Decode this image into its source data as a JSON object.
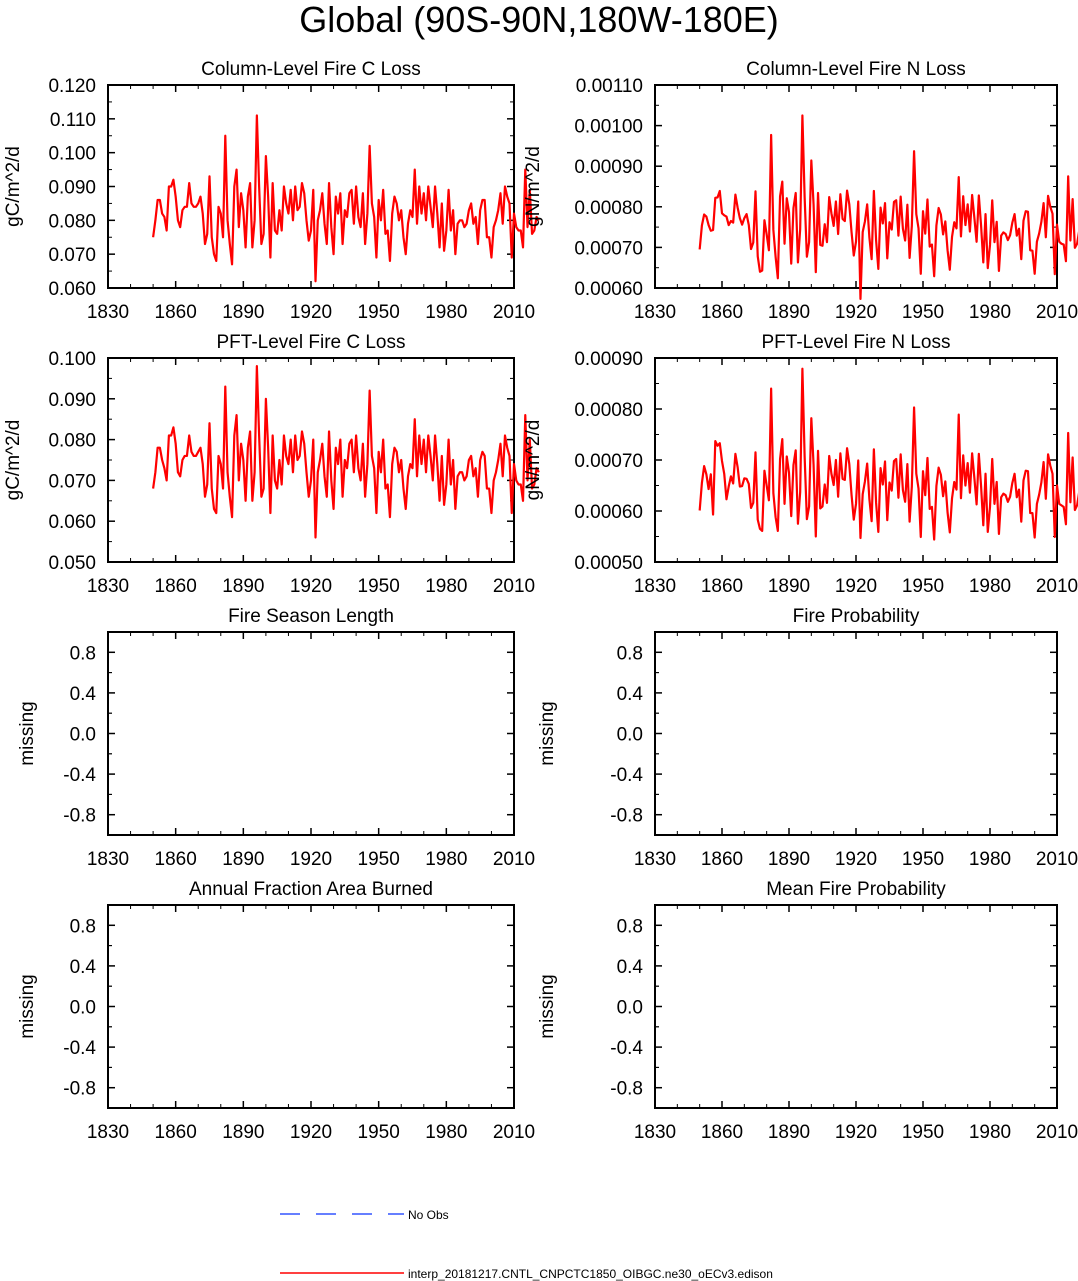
{
  "page": {
    "title": "Global (90S-90N,180W-180E)"
  },
  "colors": {
    "model_line": "#ff0000",
    "obs_line": "#3355ff",
    "axis": "#000000"
  },
  "legend": {
    "entries": [
      {
        "label": "No Obs",
        "style": "dashed",
        "color": "#3355ff"
      },
      {
        "label": "interp_20181217.CNTL_CNPCTC1850_OIBGC.ne30_oECv3.edison",
        "style": "solid",
        "color": "#ff0000"
      }
    ]
  },
  "chart_data": [
    {
      "type": "line",
      "title": "Column-Level Fire C Loss",
      "ylabel": "gC/m^2/d",
      "xlim": [
        1830,
        2010
      ],
      "ylim": [
        0.06,
        0.12
      ],
      "xticks": [
        1830,
        1860,
        1890,
        1920,
        1950,
        1980,
        2010
      ],
      "yticks": [
        0.06,
        0.07,
        0.08,
        0.09,
        0.1,
        0.11,
        0.12
      ],
      "ytick_labels": [
        "0.060",
        "0.070",
        "0.080",
        "0.090",
        "0.100",
        "0.110",
        "0.120"
      ],
      "x_start": 1850,
      "series": [
        {
          "color": "#ff0000",
          "values": [
            0.075,
            0.08,
            0.086,
            0.086,
            0.082,
            0.081,
            0.077,
            0.09,
            0.09,
            0.092,
            0.087,
            0.08,
            0.078,
            0.083,
            0.084,
            0.084,
            0.091,
            0.085,
            0.084,
            0.084,
            0.085,
            0.087,
            0.082,
            0.073,
            0.076,
            0.093,
            0.075,
            0.07,
            0.068,
            0.084,
            0.082,
            0.075,
            0.105,
            0.08,
            0.073,
            0.067,
            0.09,
            0.095,
            0.078,
            0.088,
            0.083,
            0.072,
            0.087,
            0.091,
            0.072,
            0.08,
            0.111,
            0.09,
            0.073,
            0.076,
            0.099,
            0.087,
            0.069,
            0.091,
            0.077,
            0.076,
            0.083,
            0.077,
            0.09,
            0.085,
            0.082,
            0.089,
            0.08,
            0.09,
            0.083,
            0.084,
            0.091,
            0.088,
            0.08,
            0.074,
            0.077,
            0.089,
            0.062,
            0.08,
            0.083,
            0.088,
            0.079,
            0.073,
            0.091,
            0.078,
            0.07,
            0.087,
            0.082,
            0.088,
            0.073,
            0.083,
            0.081,
            0.088,
            0.089,
            0.079,
            0.09,
            0.081,
            0.078,
            0.088,
            0.073,
            0.082,
            0.102,
            0.085,
            0.081,
            0.069,
            0.086,
            0.08,
            0.089,
            0.076,
            0.077,
            0.068,
            0.082,
            0.087,
            0.085,
            0.08,
            0.083,
            0.075,
            0.07,
            0.079,
            0.083,
            0.081,
            0.095,
            0.079,
            0.09,
            0.082,
            0.088,
            0.08,
            0.09,
            0.084,
            0.078,
            0.09,
            0.082,
            0.072,
            0.085,
            0.071,
            0.077,
            0.089,
            0.077,
            0.083,
            0.07,
            0.079,
            0.08,
            0.08,
            0.078,
            0.079,
            0.083,
            0.085,
            0.079,
            0.081,
            0.073,
            0.083,
            0.086,
            0.086,
            0.075,
            0.075,
            0.069,
            0.078,
            0.08,
            0.083,
            0.088,
            0.079,
            0.09,
            0.087,
            0.085,
            0.069,
            0.082,
            0.078,
            0.077,
            0.077,
            0.072,
            0.095,
            0.078,
            0.089,
            0.076,
            0.077,
            0.081,
            0.08
          ]
        }
      ]
    },
    {
      "type": "line",
      "title": "Column-Level Fire N Loss",
      "ylabel": "gN/m^2/d",
      "xlim": [
        1830,
        2010
      ],
      "ylim": [
        0.0006,
        0.0011
      ],
      "xticks": [
        1830,
        1860,
        1890,
        1920,
        1950,
        1980,
        2010
      ],
      "yticks": [
        0.0006,
        0.0007,
        0.0008,
        0.0009,
        0.001,
        0.0011
      ],
      "ytick_labels": [
        "0.00060",
        "0.00070",
        "0.00080",
        "0.00090",
        "0.00100",
        "0.00110"
      ],
      "x_start": 1850,
      "series": [
        {
          "color": "#ff0000",
          "values": [
            0.000695,
            0.000754,
            0.000781,
            0.000776,
            0.000755,
            0.000741,
            0.000743,
            0.000822,
            0.000823,
            0.000839,
            0.000784,
            0.000779,
            0.000776,
            0.000755,
            0.000765,
            0.000761,
            0.00083,
            0.000798,
            0.000772,
            0.000756,
            0.000772,
            0.000782,
            0.000755,
            0.000696,
            0.000712,
            0.000838,
            0.000678,
            0.00064,
            0.000643,
            0.000767,
            0.000732,
            0.000693,
            0.000977,
            0.000743,
            0.000677,
            0.000624,
            0.000826,
            0.000862,
            0.000709,
            0.000821,
            0.000787,
            0.00066,
            0.000797,
            0.000834,
            0.000663,
            0.000745,
            0.001025,
            0.000824,
            0.000677,
            0.000713,
            0.000914,
            0.000806,
            0.000639,
            0.000834,
            0.000706,
            0.000704,
            0.000757,
            0.000713,
            0.000824,
            0.000784,
            0.000753,
            0.000813,
            0.000733,
            0.000831,
            0.00077,
            0.000765,
            0.00084,
            0.000806,
            0.000738,
            0.00068,
            0.000714,
            0.000813,
            0.000573,
            0.000738,
            0.000764,
            0.000806,
            0.000724,
            0.000671,
            0.000839,
            0.000717,
            0.000647,
            0.000798,
            0.000759,
            0.000809,
            0.000673,
            0.000762,
            0.000744,
            0.000812,
            0.000816,
            0.000729,
            0.000825,
            0.000746,
            0.000717,
            0.000805,
            0.000674,
            0.000753,
            0.000937,
            0.000782,
            0.000747,
            0.000635,
            0.000789,
            0.000734,
            0.000818,
            0.000702,
            0.000707,
            0.000629,
            0.000754,
            0.000797,
            0.000781,
            0.000732,
            0.000764,
            0.000693,
            0.000645,
            0.000726,
            0.000762,
            0.000747,
            0.000873,
            0.000727,
            0.000826,
            0.000755,
            0.000806,
            0.000739,
            0.000829,
            0.000773,
            0.000714,
            0.000828,
            0.000754,
            0.000663,
            0.000782,
            0.000649,
            0.000706,
            0.000816,
            0.000713,
            0.000763,
            0.000642,
            0.000729,
            0.000737,
            0.000733,
            0.000718,
            0.00073,
            0.000761,
            0.000782,
            0.000729,
            0.000746,
            0.000671,
            0.000766,
            0.000789,
            0.000788,
            0.000693,
            0.000692,
            0.000635,
            0.000714,
            0.000734,
            0.000763,
            0.000809,
            0.000725,
            0.000827,
            0.0008,
            0.000783,
            0.000634,
            0.000756,
            0.000714,
            0.000709,
            0.000707,
            0.000666,
            0.000875,
            0.000717,
            0.000819,
            0.000699,
            0.000709,
            0.000743,
            0.000736
          ]
        }
      ]
    },
    {
      "type": "line",
      "title": "PFT-Level Fire C Loss",
      "ylabel": "gC/m^2/d",
      "xlim": [
        1830,
        2010
      ],
      "ylim": [
        0.05,
        0.1
      ],
      "xticks": [
        1830,
        1860,
        1890,
        1920,
        1950,
        1980,
        2010
      ],
      "yticks": [
        0.05,
        0.06,
        0.07,
        0.08,
        0.09,
        0.1
      ],
      "ytick_labels": [
        "0.050",
        "0.060",
        "0.070",
        "0.080",
        "0.090",
        "0.100"
      ],
      "x_start": 1850,
      "series": [
        {
          "color": "#ff0000",
          "values": [
            0.068,
            0.072,
            0.078,
            0.078,
            0.075,
            0.073,
            0.07,
            0.081,
            0.081,
            0.083,
            0.079,
            0.072,
            0.071,
            0.075,
            0.076,
            0.076,
            0.081,
            0.077,
            0.076,
            0.076,
            0.077,
            0.078,
            0.074,
            0.066,
            0.069,
            0.084,
            0.068,
            0.063,
            0.062,
            0.076,
            0.074,
            0.068,
            0.093,
            0.072,
            0.066,
            0.061,
            0.081,
            0.086,
            0.07,
            0.079,
            0.075,
            0.065,
            0.078,
            0.082,
            0.065,
            0.072,
            0.098,
            0.081,
            0.066,
            0.068,
            0.09,
            0.078,
            0.062,
            0.081,
            0.07,
            0.068,
            0.075,
            0.069,
            0.081,
            0.076,
            0.074,
            0.08,
            0.072,
            0.081,
            0.075,
            0.076,
            0.082,
            0.079,
            0.072,
            0.066,
            0.07,
            0.08,
            0.056,
            0.072,
            0.075,
            0.079,
            0.071,
            0.066,
            0.082,
            0.07,
            0.063,
            0.078,
            0.074,
            0.08,
            0.066,
            0.075,
            0.073,
            0.079,
            0.08,
            0.072,
            0.081,
            0.073,
            0.07,
            0.079,
            0.066,
            0.074,
            0.092,
            0.076,
            0.073,
            0.062,
            0.077,
            0.072,
            0.08,
            0.068,
            0.069,
            0.061,
            0.074,
            0.078,
            0.077,
            0.072,
            0.075,
            0.068,
            0.063,
            0.071,
            0.074,
            0.073,
            0.085,
            0.071,
            0.081,
            0.074,
            0.08,
            0.072,
            0.081,
            0.076,
            0.07,
            0.081,
            0.074,
            0.065,
            0.076,
            0.064,
            0.069,
            0.08,
            0.069,
            0.075,
            0.063,
            0.071,
            0.072,
            0.072,
            0.07,
            0.071,
            0.075,
            0.076,
            0.071,
            0.073,
            0.066,
            0.075,
            0.077,
            0.076,
            0.068,
            0.068,
            0.062,
            0.07,
            0.072,
            0.075,
            0.079,
            0.071,
            0.081,
            0.078,
            0.076,
            0.062,
            0.074,
            0.07,
            0.069,
            0.069,
            0.065,
            0.086,
            0.07,
            0.08,
            0.068,
            0.069,
            0.073,
            0.072
          ]
        }
      ]
    },
    {
      "type": "line",
      "title": "PFT-Level Fire N Loss",
      "ylabel": "gN/m^2/d",
      "xlim": [
        1830,
        2010
      ],
      "ylim": [
        0.0005,
        0.0009
      ],
      "xticks": [
        1830,
        1860,
        1890,
        1920,
        1950,
        1980,
        2010
      ],
      "yticks": [
        0.0005,
        0.0006,
        0.0007,
        0.0008,
        0.0009
      ],
      "ytick_labels": [
        "0.00050",
        "0.00060",
        "0.00070",
        "0.00080",
        "0.00090"
      ],
      "x_start": 1850,
      "series": [
        {
          "color": "#ff0000",
          "values": [
            0.000601,
            0.000655,
            0.000688,
            0.000672,
            0.000643,
            0.000672,
            0.000593,
            0.000737,
            0.000728,
            0.000733,
            0.000698,
            0.000673,
            0.000623,
            0.000648,
            0.000668,
            0.000654,
            0.000712,
            0.000686,
            0.000648,
            0.000649,
            0.000664,
            0.000663,
            0.000653,
            0.000606,
            0.000616,
            0.000715,
            0.000583,
            0.000565,
            0.000561,
            0.000679,
            0.00065,
            0.000621,
            0.00084,
            0.000635,
            0.000588,
            0.000561,
            0.000702,
            0.000741,
            0.000614,
            0.000707,
            0.000675,
            0.00059,
            0.00069,
            0.000719,
            0.000575,
            0.000637,
            0.000879,
            0.000707,
            0.000584,
            0.000609,
            0.000782,
            0.000691,
            0.00055,
            0.000718,
            0.000605,
            0.000609,
            0.000652,
            0.000616,
            0.000708,
            0.000673,
            0.000651,
            0.0007,
            0.000628,
            0.000713,
            0.000663,
            0.000661,
            0.000723,
            0.000692,
            0.000632,
            0.000583,
            0.000614,
            0.000699,
            0.000547,
            0.000633,
            0.000658,
            0.000693,
            0.000623,
            0.00058,
            0.000721,
            0.000616,
            0.000559,
            0.000684,
            0.000652,
            0.000697,
            0.000582,
            0.000656,
            0.00064,
            0.000698,
            0.000702,
            0.000626,
            0.000711,
            0.000641,
            0.000618,
            0.000692,
            0.000579,
            0.000648,
            0.000803,
            0.000673,
            0.000644,
            0.000549,
            0.000678,
            0.000631,
            0.000704,
            0.000604,
            0.000608,
            0.000544,
            0.000649,
            0.000685,
            0.000671,
            0.000629,
            0.000658,
            0.000597,
            0.000558,
            0.000625,
            0.000657,
            0.000642,
            0.000789,
            0.000625,
            0.000709,
            0.00065,
            0.000694,
            0.000636,
            0.000713,
            0.000665,
            0.000613,
            0.000712,
            0.000649,
            0.000572,
            0.000673,
            0.000559,
            0.000608,
            0.000702,
            0.000614,
            0.000657,
            0.000555,
            0.000627,
            0.000634,
            0.000631,
            0.000618,
            0.000628,
            0.000655,
            0.000673,
            0.000627,
            0.000642,
            0.000579,
            0.00066,
            0.000679,
            0.000678,
            0.000596,
            0.000596,
            0.000548,
            0.000614,
            0.000632,
            0.000656,
            0.000696,
            0.000624,
            0.000711,
            0.000689,
            0.000673,
            0.000549,
            0.00065,
            0.000614,
            0.000611,
            0.000608,
            0.000574,
            0.000753,
            0.000617,
            0.000705,
            0.000602,
            0.000611,
            0.000639,
            0.000633
          ]
        }
      ]
    },
    {
      "type": "line",
      "title": "Fire Season Length",
      "ylabel": "missing",
      "xlim": [
        1830,
        2010
      ],
      "ylim": [
        -1,
        1
      ],
      "xticks": [
        1830,
        1860,
        1890,
        1920,
        1950,
        1980,
        2010
      ],
      "yticks": [
        -0.8,
        -0.4,
        0.0,
        0.4,
        0.8
      ],
      "ytick_labels": [
        "-0.8",
        "-0.4",
        "0.0",
        "0.4",
        "0.8"
      ],
      "series": []
    },
    {
      "type": "line",
      "title": "Fire Probability",
      "ylabel": "missing",
      "xlim": [
        1830,
        2010
      ],
      "ylim": [
        -1,
        1
      ],
      "xticks": [
        1830,
        1860,
        1890,
        1920,
        1950,
        1980,
        2010
      ],
      "yticks": [
        -0.8,
        -0.4,
        0.0,
        0.4,
        0.8
      ],
      "ytick_labels": [
        "-0.8",
        "-0.4",
        "0.0",
        "0.4",
        "0.8"
      ],
      "series": []
    },
    {
      "type": "line",
      "title": "Annual Fraction Area Burned",
      "ylabel": "missing",
      "xlim": [
        1830,
        2010
      ],
      "ylim": [
        -1,
        1
      ],
      "xticks": [
        1830,
        1860,
        1890,
        1920,
        1950,
        1980,
        2010
      ],
      "yticks": [
        -0.8,
        -0.4,
        0.0,
        0.4,
        0.8
      ],
      "ytick_labels": [
        "-0.8",
        "-0.4",
        "0.0",
        "0.4",
        "0.8"
      ],
      "series": []
    },
    {
      "type": "line",
      "title": "Mean Fire Probability",
      "ylabel": "missing",
      "xlim": [
        1830,
        2010
      ],
      "ylim": [
        -1,
        1
      ],
      "xticks": [
        1830,
        1860,
        1890,
        1920,
        1950,
        1980,
        2010
      ],
      "yticks": [
        -0.8,
        -0.4,
        0.0,
        0.4,
        0.8
      ],
      "ytick_labels": [
        "-0.8",
        "-0.4",
        "0.0",
        "0.4",
        "0.8"
      ],
      "series": []
    }
  ]
}
